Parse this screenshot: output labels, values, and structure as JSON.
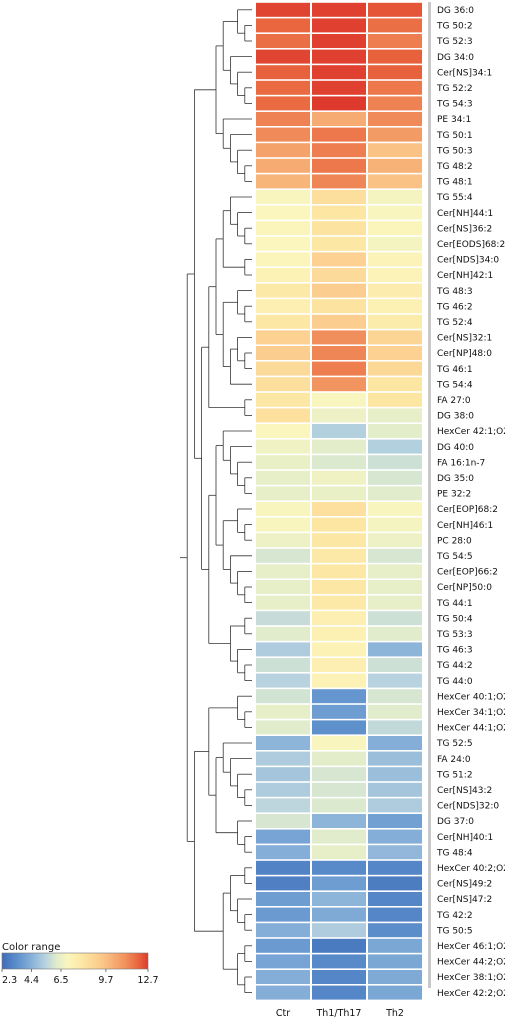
{
  "chart_data": {
    "type": "heatmap",
    "title": "",
    "columns": [
      "Ctr",
      "Th1/Th17",
      "Th2"
    ],
    "rows": [
      "DG 36:0",
      "TG 50:2",
      "TG 52:3",
      "DG 34:0",
      "Cer[NS]34:1",
      "TG 52:2",
      "TG 54:3",
      "PE 34:1",
      "TG 50:1",
      "TG 50:3",
      "TG 48:2",
      "TG 48:1",
      "TG 55:4",
      "Cer[NH]44:1",
      "Cer[NS]36:2",
      "Cer[EODS]68:2",
      "Cer[NDS]34:0",
      "Cer[NH]42:1",
      "TG 48:3",
      "TG 46:2",
      "TG 52:4",
      "Cer[NS]32:1",
      "Cer[NP]48:0",
      "TG 46:1",
      "TG 54:4",
      "FA 27:0",
      "DG 38:0",
      "HexCer 42:1;O2",
      "DG 40:0",
      "FA 16:1n-7",
      "DG 35:0",
      "PE 32:2",
      "Cer[EOP]68:2",
      "Cer[NH]46:1",
      "PC 28:0",
      "TG 54:5",
      "Cer[EOP]66:2",
      "Cer[NP]50:0",
      "TG 44:1",
      "TG 50:4",
      "TG 53:3",
      "TG 46:3",
      "TG 44:2",
      "TG 44:0",
      "HexCer 40:1;O2",
      "HexCer 34:1;O2",
      "HexCer 44:1;O2",
      "TG 52:5",
      "FA 24:0",
      "TG 51:2",
      "Cer[NS]43:2",
      "Cer[NDS]32:0",
      "DG 37:0",
      "Cer[NH]40:1",
      "TG 48:4",
      "HexCer 40:2;O2",
      "Cer[NS]49:2",
      "Cer[NS]47:2",
      "TG 42:2",
      "TG 50:5",
      "HexCer 46:1;O2",
      "HexCer 44:2;O2",
      "HexCer 38:1;O2",
      "HexCer 42:2;O2"
    ],
    "values": [
      [
        12.6,
        12.7,
        12.3
      ],
      [
        12.0,
        12.7,
        11.8
      ],
      [
        11.8,
        12.7,
        11.5
      ],
      [
        12.6,
        12.7,
        12.1
      ],
      [
        12.1,
        12.7,
        12.1
      ],
      [
        11.9,
        12.7,
        11.6
      ],
      [
        11.9,
        12.8,
        11.4
      ],
      [
        11.4,
        10.3,
        11.2
      ],
      [
        11.2,
        11.6,
        10.8
      ],
      [
        10.6,
        11.5,
        9.6
      ],
      [
        10.3,
        11.6,
        10.1
      ],
      [
        10.0,
        11.3,
        9.6
      ],
      [
        6.9,
        8.4,
        6.8
      ],
      [
        7.0,
        8.1,
        6.9
      ],
      [
        7.1,
        8.2,
        7.1
      ],
      [
        7.0,
        8.0,
        6.8
      ],
      [
        7.1,
        9.0,
        7.2
      ],
      [
        7.3,
        8.6,
        7.2
      ],
      [
        7.9,
        9.2,
        7.6
      ],
      [
        7.5,
        8.2,
        7.4
      ],
      [
        8.0,
        9.2,
        7.7
      ],
      [
        9.0,
        11.1,
        8.8
      ],
      [
        9.2,
        11.3,
        9.0
      ],
      [
        8.6,
        11.5,
        8.7
      ],
      [
        8.4,
        11.0,
        8.1
      ],
      [
        8.0,
        6.9,
        8.1
      ],
      [
        8.3,
        6.6,
        6.4
      ],
      [
        7.0,
        5.3,
        6.3
      ],
      [
        6.7,
        6.3,
        5.3
      ],
      [
        6.5,
        6.1,
        5.8
      ],
      [
        6.4,
        6.7,
        6.0
      ],
      [
        6.4,
        6.5,
        6.2
      ],
      [
        6.9,
        8.3,
        6.9
      ],
      [
        6.9,
        8.1,
        6.8
      ],
      [
        6.6,
        8.0,
        6.6
      ],
      [
        6.0,
        7.9,
        6.0
      ],
      [
        6.4,
        8.0,
        6.4
      ],
      [
        6.4,
        8.0,
        6.4
      ],
      [
        6.4,
        7.9,
        6.4
      ],
      [
        5.7,
        7.5,
        5.8
      ],
      [
        6.2,
        7.4,
        6.2
      ],
      [
        5.2,
        7.3,
        4.5
      ],
      [
        5.8,
        7.5,
        5.8
      ],
      [
        5.4,
        7.3,
        5.4
      ],
      [
        5.9,
        3.6,
        6.0
      ],
      [
        6.4,
        3.8,
        6.2
      ],
      [
        6.2,
        3.4,
        5.6
      ],
      [
        4.5,
        6.9,
        4.3
      ],
      [
        5.2,
        6.3,
        4.8
      ],
      [
        5.0,
        6.0,
        4.8
      ],
      [
        5.2,
        6.0,
        5.0
      ],
      [
        5.5,
        6.1,
        5.2
      ],
      [
        6.0,
        4.5,
        3.9
      ],
      [
        4.0,
        6.2,
        4.3
      ],
      [
        4.3,
        6.4,
        4.6
      ],
      [
        3.0,
        3.2,
        3.1
      ],
      [
        2.9,
        3.8,
        2.8
      ],
      [
        3.8,
        4.5,
        3.1
      ],
      [
        3.7,
        4.2,
        3.1
      ],
      [
        4.3,
        5.2,
        3.3
      ],
      [
        3.7,
        2.7,
        4.1
      ],
      [
        4.0,
        3.2,
        4.1
      ],
      [
        4.3,
        3.1,
        4.2
      ],
      [
        4.3,
        3.1,
        4.1
      ]
    ],
    "color_scale": {
      "title": "Color range",
      "ticks": [
        "2.3",
        "4.4",
        "6.5",
        "9.7",
        "12.7"
      ],
      "tick_values": [
        2.3,
        4.4,
        6.5,
        9.7,
        12.7
      ],
      "stops": [
        {
          "value": 2.3,
          "color": "#3e6db8"
        },
        {
          "value": 3.5,
          "color": "#6193ce"
        },
        {
          "value": 4.5,
          "color": "#8db4d9"
        },
        {
          "value": 5.4,
          "color": "#b8d3df"
        },
        {
          "value": 6.2,
          "color": "#e0eccc"
        },
        {
          "value": 7.0,
          "color": "#fbf6bd"
        },
        {
          "value": 8.0,
          "color": "#fde7a4"
        },
        {
          "value": 9.5,
          "color": "#fbc688"
        },
        {
          "value": 11.0,
          "color": "#f2945f"
        },
        {
          "value": 12.0,
          "color": "#e9663f"
        },
        {
          "value": 12.8,
          "color": "#dd3a2d"
        }
      ]
    },
    "row_dendrogram": "left",
    "grid": false,
    "legend_position": "bottom-left"
  }
}
